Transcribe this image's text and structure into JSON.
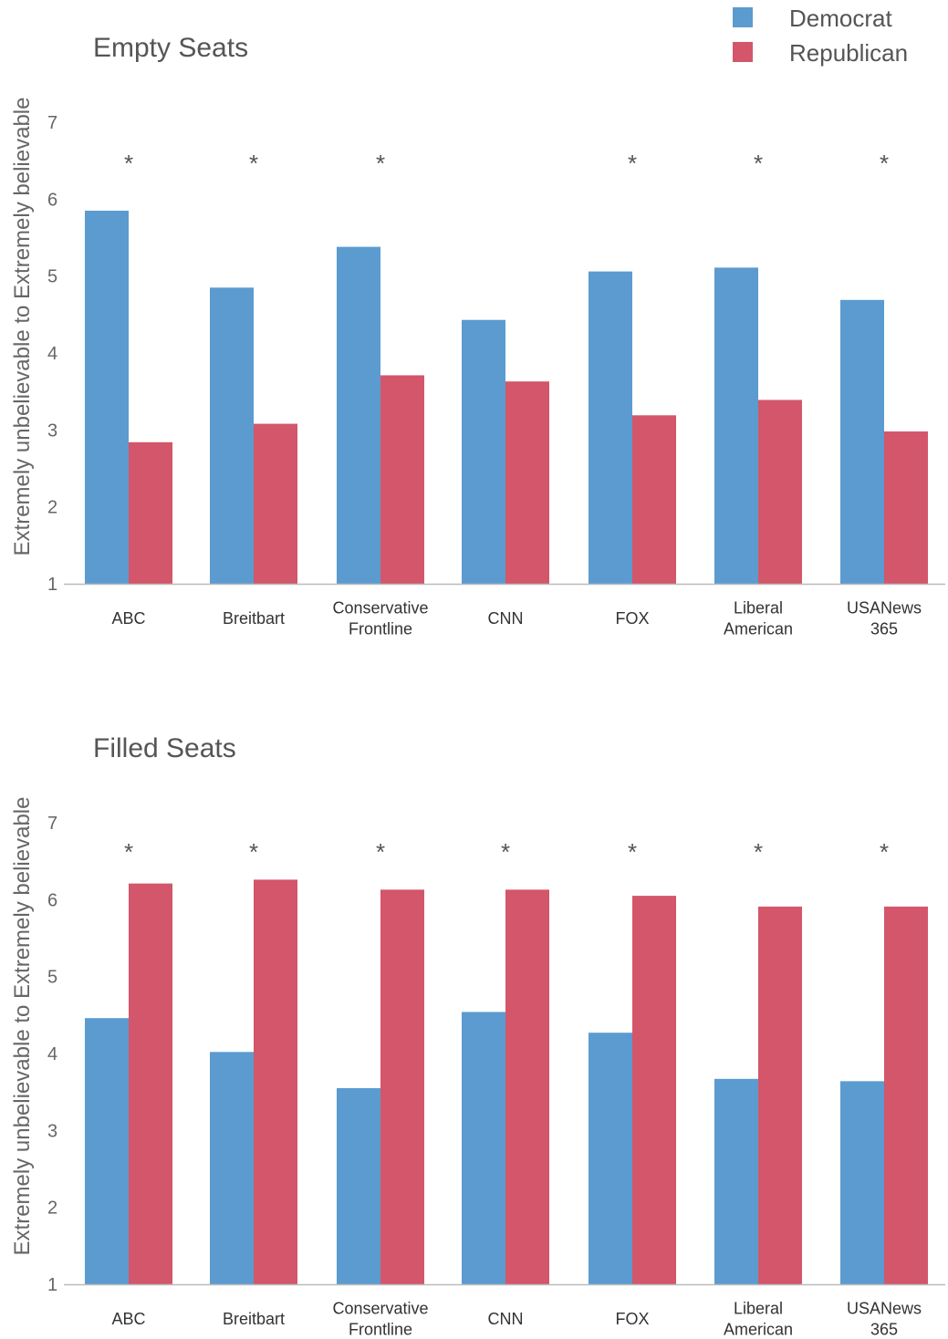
{
  "legend": {
    "items": [
      {
        "label": "Democrat",
        "color": "#5b9bd0"
      },
      {
        "label": "Republican",
        "color": "#d3566b"
      }
    ]
  },
  "chart_data": [
    {
      "type": "bar",
      "title": "Empty Seats",
      "ylabel": "Extremely unbelievable to Extremely believable",
      "ylim": [
        1,
        7
      ],
      "yticks": [
        1,
        2,
        3,
        4,
        5,
        6,
        7
      ],
      "categories": [
        [
          "ABC"
        ],
        [
          "Breitbart"
        ],
        [
          "Conservative",
          "Frontline"
        ],
        [
          "CNN"
        ],
        [
          "FOX"
        ],
        [
          "Liberal",
          "American"
        ],
        [
          "USANews",
          "365"
        ]
      ],
      "significance": [
        "*",
        "*",
        "*",
        "",
        "*",
        "*",
        "*"
      ],
      "series": [
        {
          "name": "Democrat",
          "color": "#5b9bd0",
          "values": [
            5.85,
            4.85,
            5.38,
            4.43,
            5.06,
            5.11,
            4.69
          ]
        },
        {
          "name": "Republican",
          "color": "#d3566b",
          "values": [
            2.84,
            3.08,
            3.71,
            3.63,
            3.19,
            3.39,
            2.98
          ]
        }
      ]
    },
    {
      "type": "bar",
      "title": "Filled Seats",
      "ylabel": "Extremely unbelievable to Extremely believable",
      "ylim": [
        1,
        7
      ],
      "yticks": [
        1,
        2,
        3,
        4,
        5,
        6,
        7
      ],
      "categories": [
        [
          "ABC"
        ],
        [
          "Breitbart"
        ],
        [
          "Conservative",
          "Frontline"
        ],
        [
          "CNN"
        ],
        [
          "FOX"
        ],
        [
          "Liberal",
          "American"
        ],
        [
          "USANews",
          "365"
        ]
      ],
      "significance": [
        "*",
        "*",
        "*",
        "*",
        "*",
        "*",
        "*"
      ],
      "series": [
        {
          "name": "Democrat",
          "color": "#5b9bd0",
          "values": [
            4.46,
            4.02,
            3.55,
            4.54,
            4.27,
            3.67,
            3.64
          ]
        },
        {
          "name": "Republican",
          "color": "#d3566b",
          "values": [
            6.21,
            6.26,
            6.13,
            6.13,
            6.05,
            5.91,
            5.91
          ]
        }
      ]
    }
  ]
}
